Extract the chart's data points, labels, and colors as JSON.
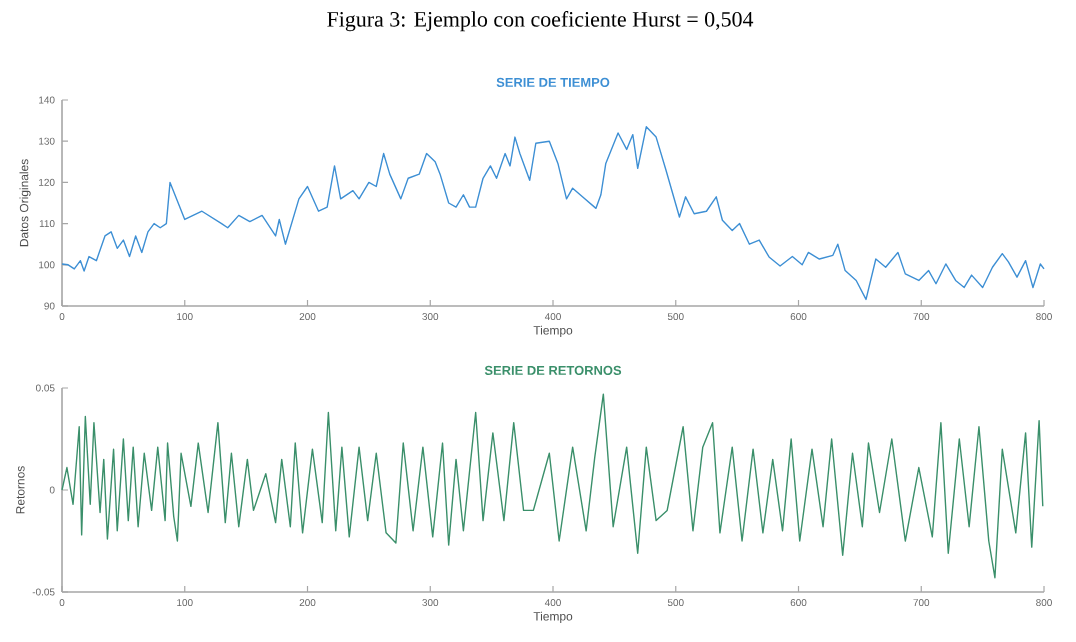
{
  "chart_data": [
    {
      "type": "line",
      "title": "SERIE DE TIEMPO",
      "xlabel": "Tiempo",
      "ylabel": "Datos Originales",
      "annotations": [
        "Figura 3: Ejemplo con coeficiente Hurst = 0,504"
      ],
      "xlim": [
        0,
        800
      ],
      "ylim": [
        90,
        140
      ],
      "xticks": [
        0,
        100,
        200,
        300,
        400,
        500,
        600,
        700,
        800
      ],
      "yticks": [
        90,
        100,
        110,
        120,
        130,
        140
      ],
      "series": [
        {
          "color": "#3d8fd4",
          "x": [
            0,
            5,
            10,
            15,
            18,
            22,
            28,
            35,
            40,
            45,
            50,
            55,
            60,
            65,
            70,
            75,
            80,
            85,
            88,
            100,
            114,
            130,
            135,
            144,
            153,
            163,
            174,
            177,
            182,
            193,
            200,
            209,
            216,
            222,
            227,
            237,
            242,
            250,
            256,
            262,
            267,
            276,
            282,
            291,
            297,
            304,
            308,
            315,
            321,
            327,
            332,
            337,
            343,
            349,
            354,
            361,
            365,
            369,
            373,
            381,
            386,
            397,
            404,
            411,
            416,
            424,
            435,
            439,
            443,
            453,
            460,
            465,
            469,
            476,
            484,
            492,
            503,
            508,
            515,
            525,
            533,
            538,
            546,
            552,
            560,
            568,
            576,
            585,
            595,
            603,
            608,
            617,
            628,
            632,
            638,
            647,
            655,
            663,
            671,
            681,
            687,
            698,
            706,
            712,
            720,
            728,
            735,
            741,
            750,
            758,
            766,
            771,
            778,
            785,
            791,
            797,
            800
          ],
          "values": [
            100.2,
            100,
            99,
            101,
            98.5,
            102,
            101,
            107,
            108,
            104,
            106,
            102,
            107,
            103,
            108,
            110,
            109,
            110,
            120,
            111,
            113,
            110,
            109,
            112,
            110.5,
            112,
            107,
            111,
            105,
            116,
            119,
            113,
            114,
            124,
            116,
            118,
            116,
            120,
            119,
            127,
            122,
            116,
            121,
            122,
            127,
            125,
            122,
            115,
            114,
            117,
            114,
            114,
            121,
            124,
            121,
            127,
            124,
            131,
            127,
            120.5,
            129.5,
            130,
            124.6,
            116,
            118.6,
            116.5,
            113.7,
            117,
            124.6,
            132,
            128,
            131.6,
            123.4,
            133.5,
            131,
            123,
            111.6,
            116.5,
            112.4,
            113,
            116.5,
            110.8,
            108.3,
            110,
            105,
            106,
            101.9,
            99.7,
            102,
            100,
            103,
            101.4,
            102.3,
            105,
            98.6,
            96.2,
            91.6,
            101.4,
            99.4,
            103,
            97.8,
            96.2,
            98.6,
            95.4,
            100.2,
            96.2,
            94.5,
            97.5,
            94.5,
            99.4,
            102.7,
            100.7,
            97,
            101,
            94.5,
            100.2,
            99
          ]
        }
      ]
    },
    {
      "type": "line",
      "title": "SERIE DE RETORNOS",
      "xlabel": "Tiempo",
      "ylabel": "Retornos",
      "xlim": [
        0,
        800
      ],
      "ylim": [
        -0.05,
        0.05
      ],
      "xticks": [
        0,
        100,
        200,
        300,
        400,
        500,
        600,
        700,
        800
      ],
      "yticks": [
        -0.05,
        0,
        0.05
      ],
      "series": [
        {
          "color": "#3a8f6a",
          "x": [
            0,
            4,
            9,
            14,
            16,
            19,
            23,
            26,
            31,
            34,
            37,
            42,
            45,
            50,
            54,
            58,
            62,
            67,
            73,
            78,
            84,
            86,
            91,
            94,
            97,
            105,
            111,
            119,
            127,
            133,
            138,
            144,
            151,
            156,
            166,
            174,
            179,
            186,
            190,
            196,
            204,
            212,
            217,
            223,
            228,
            234,
            242,
            249,
            256,
            264,
            272,
            278,
            286,
            294,
            302,
            310,
            315,
            321,
            327,
            337,
            343,
            351,
            360,
            368,
            376,
            384,
            397,
            405,
            416,
            427,
            434,
            441,
            449,
            460,
            469,
            476,
            484,
            493,
            506,
            514,
            522,
            530,
            536,
            546,
            554,
            563,
            571,
            579,
            587,
            594,
            601,
            611,
            620,
            627,
            636,
            644,
            652,
            657,
            666,
            676,
            687,
            698,
            709,
            716,
            722,
            731,
            739,
            747,
            755,
            760,
            766,
            777,
            785,
            790,
            796,
            799
          ],
          "values": [
            0,
            0.011,
            -0.007,
            0.031,
            -0.022,
            0.036,
            -0.007,
            0.033,
            -0.011,
            0.015,
            -0.024,
            0.02,
            -0.02,
            0.025,
            -0.015,
            0.021,
            -0.018,
            0.018,
            -0.01,
            0.021,
            -0.015,
            0.023,
            -0.013,
            -0.025,
            0.018,
            -0.008,
            0.023,
            -0.011,
            0.033,
            -0.016,
            0.018,
            -0.018,
            0.015,
            -0.01,
            0.008,
            -0.016,
            0.015,
            -0.018,
            0.023,
            -0.021,
            0.02,
            -0.016,
            0.038,
            -0.02,
            0.021,
            -0.023,
            0.021,
            -0.015,
            0.018,
            -0.021,
            -0.026,
            0.023,
            -0.02,
            0.021,
            -0.023,
            0.023,
            -0.027,
            0.015,
            -0.02,
            0.038,
            -0.015,
            0.028,
            -0.015,
            0.033,
            -0.01,
            -0.01,
            0.018,
            -0.025,
            0.021,
            -0.02,
            0.016,
            0.047,
            -0.018,
            0.021,
            -0.031,
            0.021,
            -0.015,
            -0.01,
            0.031,
            -0.02,
            0.021,
            0.033,
            -0.021,
            0.021,
            -0.025,
            0.02,
            -0.021,
            0.015,
            -0.02,
            0.025,
            -0.025,
            0.02,
            -0.018,
            0.025,
            -0.032,
            0.018,
            -0.018,
            0.023,
            -0.011,
            0.025,
            -0.025,
            0.011,
            -0.023,
            0.033,
            -0.031,
            0.025,
            -0.018,
            0.031,
            -0.025,
            -0.043,
            0.02,
            -0.021,
            0.028,
            -0.028,
            0.034,
            -0.008
          ]
        }
      ]
    }
  ]
}
